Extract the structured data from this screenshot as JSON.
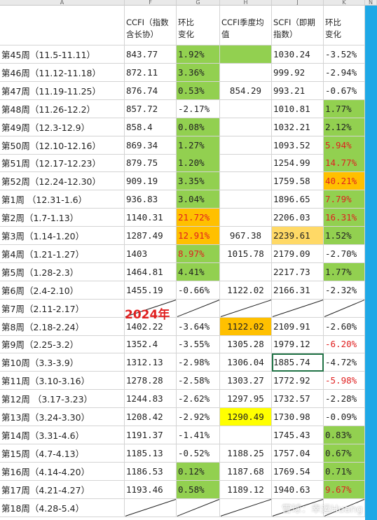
{
  "column_headers": [
    "A",
    "F",
    "G",
    "H",
    "J",
    "K",
    "N"
  ],
  "header_row": {
    "ccfi": [
      "CCFI（指数",
      "含长协）"
    ],
    "ccfi_change": [
      "环比",
      "变化"
    ],
    "ccfi_quarter": [
      "CCFI季度均",
      "值"
    ],
    "scfi": [
      "SCFI（即期",
      "指数）"
    ],
    "scfi_change": [
      "环比",
      "变化"
    ]
  },
  "rows": [
    {
      "week": "第45周（11.5-11.11）",
      "ccfi": "843.77",
      "ccfi_change": "1.92%",
      "ccfi_change_fill": "#92d050",
      "quarter": "",
      "quarter_fill": "#92d050",
      "scfi": "1030.24",
      "scfi_change": "-3.52%",
      "scfi_change_fill": "",
      "scfi_change_color": "#222222"
    },
    {
      "week": "第46周（11.12-11.18）",
      "ccfi": "872.11",
      "ccfi_change": "3.36%",
      "ccfi_change_fill": "#92d050",
      "quarter": "",
      "quarter_fill": "",
      "scfi": "999.92",
      "scfi_change": "-2.94%",
      "scfi_change_fill": "",
      "scfi_change_color": "#222222"
    },
    {
      "week": "第47周（11.19-11.25）",
      "ccfi": "876.74",
      "ccfi_change": "0.53%",
      "ccfi_change_fill": "#92d050",
      "quarter": "854.29",
      "quarter_fill": "",
      "scfi": "993.21",
      "scfi_change": "-0.67%",
      "scfi_change_fill": "",
      "scfi_change_color": "#222222"
    },
    {
      "week": "第48周（11.26-12.2）",
      "ccfi": "857.72",
      "ccfi_change": "-2.17%",
      "ccfi_change_fill": "",
      "quarter": "",
      "quarter_fill": "",
      "scfi": "1010.81",
      "scfi_change": "1.77%",
      "scfi_change_fill": "#92d050",
      "scfi_change_color": "#222222"
    },
    {
      "week": "第49周（12.3-12.9）",
      "ccfi": "858.4",
      "ccfi_change": "0.08%",
      "ccfi_change_fill": "#92d050",
      "quarter": "",
      "quarter_fill": "",
      "scfi": "1032.21",
      "scfi_change": "2.12%",
      "scfi_change_fill": "#92d050",
      "scfi_change_color": "#222222"
    },
    {
      "week": "第50周（12.10-12.16）",
      "ccfi": "869.34",
      "ccfi_change": "1.27%",
      "ccfi_change_fill": "#92d050",
      "quarter": "",
      "quarter_fill": "",
      "scfi": "1093.52",
      "scfi_change": "5.94%",
      "scfi_change_fill": "#92d050",
      "scfi_change_color": "#e02020"
    },
    {
      "week": "第51周（12.17-12.23）",
      "ccfi": "879.75",
      "ccfi_change": "1.20%",
      "ccfi_change_fill": "#92d050",
      "quarter": "",
      "quarter_fill": "",
      "scfi": "1254.99",
      "scfi_change": "14.77%",
      "scfi_change_fill": "#92d050",
      "scfi_change_color": "#e02020"
    },
    {
      "week": "第52周（12.24-12.30）",
      "ccfi": "909.19",
      "ccfi_change": "3.35%",
      "ccfi_change_fill": "#92d050",
      "quarter": "",
      "quarter_fill": "",
      "scfi": "1759.58",
      "scfi_change": "40.21%",
      "scfi_change_fill": "#ffc000",
      "scfi_change_color": "#e02020"
    },
    {
      "week": "第1周 （12.31-1.6）",
      "ccfi": "936.83",
      "ccfi_change": "3.04%",
      "ccfi_change_fill": "#92d050",
      "quarter": "",
      "quarter_fill": "",
      "scfi": "1896.65",
      "scfi_change": "7.79%",
      "scfi_change_fill": "#92d050",
      "scfi_change_color": "#e02020"
    },
    {
      "week": "第2周（1.7-1.13）",
      "ccfi": "1140.31",
      "ccfi_change": "21.72%",
      "ccfi_change_fill": "#ffc000",
      "ccfi_change_color": "#e02020",
      "quarter": "",
      "quarter_fill": "",
      "scfi": "2206.03",
      "scfi_change": "16.31%",
      "scfi_change_fill": "#92d050",
      "scfi_change_color": "#e02020"
    },
    {
      "week": "第3周（1.14-1.20）",
      "ccfi": "1287.49",
      "ccfi_change": "12.91%",
      "ccfi_change_fill": "#ffc000",
      "ccfi_change_color": "#e02020",
      "quarter": "967.38",
      "quarter_fill": "",
      "scfi": "2239.61",
      "scfi_fill": "#ffd966",
      "scfi_change": "1.52%",
      "scfi_change_fill": "#92d050",
      "scfi_change_color": "#222222"
    },
    {
      "week": "第4周（1.21-1.27）",
      "ccfi": "1403",
      "ccfi_change": "8.97%",
      "ccfi_change_fill": "#92d050",
      "ccfi_change_color": "#e02020",
      "quarter": "1015.78",
      "quarter_fill": "",
      "scfi": "2179.09",
      "scfi_change": "-2.70%",
      "scfi_change_fill": "",
      "scfi_change_color": "#222222"
    },
    {
      "week": "第5周（1.28-2.3）",
      "ccfi": "1464.81",
      "ccfi_change": "4.41%",
      "ccfi_change_fill": "#92d050",
      "quarter": "",
      "quarter_fill": "",
      "scfi": "2217.73",
      "scfi_change": "1.77%",
      "scfi_change_fill": "#92d050",
      "scfi_change_color": "#222222"
    },
    {
      "week": "第6周（2.4-2.10）",
      "ccfi": "1455.19",
      "ccfi_change": "-0.66%",
      "ccfi_change_fill": "",
      "quarter": "1122.02",
      "quarter_fill": "",
      "scfi": "2166.31",
      "scfi_change": "-2.32%",
      "scfi_change_fill": "",
      "scfi_change_color": "#222222"
    },
    {
      "week": "第7周（2.11-2.17）",
      "ccfi": "",
      "ccfi_change": "",
      "ccfi_change_fill": "",
      "quarter": "",
      "quarter_fill": "",
      "scfi": "",
      "scfi_change": "",
      "scfi_change_fill": "",
      "scfi_change_color": "#222222",
      "holiday": true
    },
    {
      "week": "第8周（2.18-2.24）",
      "ccfi": "1402.22",
      "ccfi_change": "-3.64%",
      "ccfi_change_fill": "",
      "quarter": "1122.02",
      "quarter_fill": "#ffc000",
      "scfi": "2109.91",
      "scfi_change": "-2.60%",
      "scfi_change_fill": "",
      "scfi_change_color": "#222222"
    },
    {
      "week": "第9周（2.25-3.2）",
      "ccfi": "1352.4",
      "ccfi_change": "-3.55%",
      "ccfi_change_fill": "",
      "quarter": "1305.28",
      "quarter_fill": "",
      "scfi": "1979.12",
      "scfi_change": "-6.20%",
      "scfi_change_fill": "",
      "scfi_change_color": "#e02020"
    },
    {
      "week": "第10周（3.3-3.9）",
      "ccfi": "1312.13",
      "ccfi_change": "-2.98%",
      "ccfi_change_fill": "",
      "quarter": "1306.04",
      "quarter_fill": "",
      "scfi": "1885.74",
      "scfi_change": "-4.72%",
      "scfi_change_fill": "",
      "scfi_change_color": "#222222",
      "selected": true
    },
    {
      "week": "第11周（3.10-3.16）",
      "ccfi": "1278.28",
      "ccfi_change": "-2.58%",
      "ccfi_change_fill": "",
      "quarter": "1303.27",
      "quarter_fill": "",
      "scfi": "1772.92",
      "scfi_change": "-5.98%",
      "scfi_change_fill": "",
      "scfi_change_color": "#e02020"
    },
    {
      "week": "第12周 （3.17-3.23）",
      "ccfi": "1244.83",
      "ccfi_change": "-2.62%",
      "ccfi_change_fill": "",
      "quarter": "1297.95",
      "quarter_fill": "",
      "scfi": "1732.57",
      "scfi_change": "-2.28%",
      "scfi_change_fill": "",
      "scfi_change_color": "#222222"
    },
    {
      "week": "第13周（3.24-3.30）",
      "ccfi": "1208.42",
      "ccfi_change": "-2.92%",
      "ccfi_change_fill": "",
      "quarter": "1290.49",
      "quarter_fill": "#ffff00",
      "scfi": "1730.98",
      "scfi_change": "-0.09%",
      "scfi_change_fill": "",
      "scfi_change_color": "#222222"
    },
    {
      "week": "第14周（3.31-4.6）",
      "ccfi": "1191.37",
      "ccfi_change": "-1.41%",
      "ccfi_change_fill": "",
      "quarter": "",
      "quarter_fill": "",
      "scfi": "1745.43",
      "scfi_change": "0.83%",
      "scfi_change_fill": "#92d050",
      "scfi_change_color": "#222222"
    },
    {
      "week": "第15周（4.7-4.13）",
      "ccfi": "1185.13",
      "ccfi_change": "-0.52%",
      "ccfi_change_fill": "",
      "quarter": "1188.25",
      "quarter_fill": "",
      "scfi": "1757.04",
      "scfi_change": "0.67%",
      "scfi_change_fill": "#92d050",
      "scfi_change_color": "#222222"
    },
    {
      "week": "第16周（4.14-4.20）",
      "ccfi": "1186.53",
      "ccfi_change": "0.12%",
      "ccfi_change_fill": "#92d050",
      "quarter": "1187.68",
      "quarter_fill": "",
      "scfi": "1769.54",
      "scfi_change": "0.71%",
      "scfi_change_fill": "#92d050",
      "scfi_change_color": "#222222"
    },
    {
      "week": "第17周（4.21-4.27）",
      "ccfi": "1193.46",
      "ccfi_change": "0.58%",
      "ccfi_change_fill": "#92d050",
      "quarter": "1189.12",
      "quarter_fill": "",
      "scfi": "1940.63",
      "scfi_change": "9.67%",
      "scfi_change_fill": "#92d050",
      "scfi_change_color": "#e02020"
    },
    {
      "week": "第18周（4.28-5.4）",
      "ccfi": "",
      "ccfi_change": "",
      "ccfi_change_fill": "",
      "quarter": "",
      "quarter_fill": "",
      "scfi": "",
      "scfi_change": "",
      "scfi_change_fill": "",
      "scfi_change_color": "#222222",
      "holiday": true
    }
  ],
  "annotation": "2024年",
  "watermark": "雪球：幸运Huang",
  "colors": {
    "green": "#92d050",
    "orange": "#ffc000",
    "yellow": "#ffff00",
    "light_orange": "#ffd966",
    "red_text": "#e02020",
    "sidebar_blue": "#1ea8e6"
  }
}
